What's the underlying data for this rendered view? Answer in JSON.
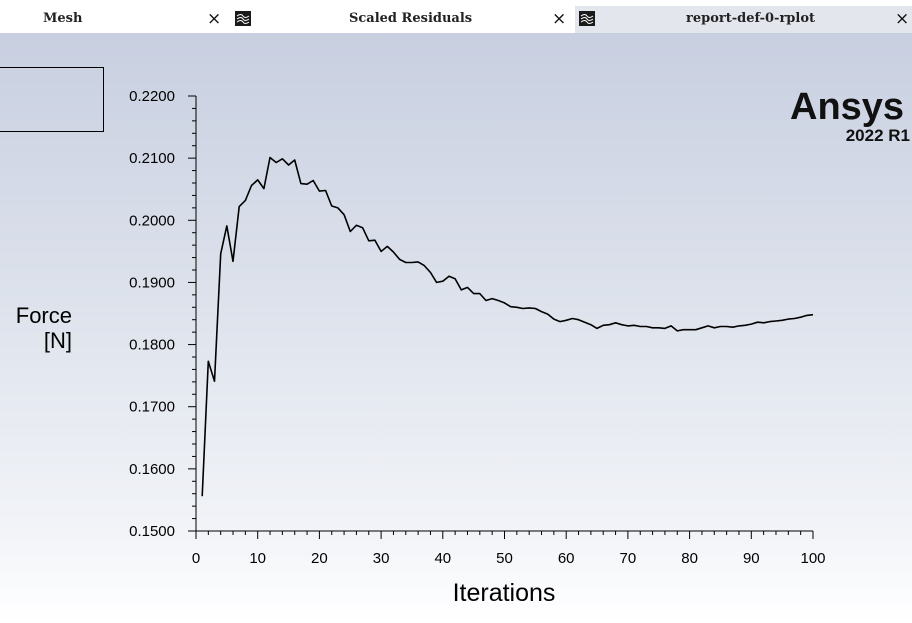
{
  "tabs": [
    {
      "label": "Mesh",
      "close": "×",
      "active": false,
      "icon": null
    },
    {
      "label": "Scaled Residuals",
      "close": "×",
      "active": false,
      "icon": "residuals-plot-icon"
    },
    {
      "label": "report-def-0-rplot",
      "close": "×",
      "active": true,
      "icon": "report-plot-icon"
    }
  ],
  "logo": {
    "name": "Ansys",
    "version": "2022 R1"
  },
  "colors": {
    "line": "#000000",
    "background_top": "#c8cfe0",
    "background_bottom": "#ffffff",
    "active_tab": "#e4e6ee"
  },
  "chart_data": {
    "type": "line",
    "xlabel": "Iterations",
    "ylabel_lines": [
      "Force",
      "[N]"
    ],
    "xlim": [
      0,
      100
    ],
    "ylim": [
      0.15,
      0.22
    ],
    "x_ticks": [
      0,
      10,
      20,
      30,
      40,
      50,
      60,
      70,
      80,
      90,
      100
    ],
    "x_tick_labels": [
      "0",
      "10",
      "20",
      "30",
      "40",
      "50",
      "60",
      "70",
      "80",
      "90",
      "100"
    ],
    "y_ticks": [
      0.15,
      0.16,
      0.17,
      0.18,
      0.19,
      0.2,
      0.21,
      0.22
    ],
    "y_tick_labels": [
      "0.1500",
      "0.1600",
      "0.1700",
      "0.1800",
      "0.1900",
      "0.2000",
      "0.2100",
      "0.2200"
    ],
    "grid": false,
    "series": [
      {
        "x": [
          1,
          2,
          3,
          4,
          5,
          6,
          7,
          8,
          9,
          10,
          11,
          12,
          13,
          14,
          15,
          16,
          17,
          18,
          19,
          20,
          21,
          22,
          23,
          24,
          25,
          26,
          27,
          28,
          29,
          30,
          31,
          32,
          33,
          34,
          35,
          36,
          37,
          38,
          39,
          40,
          41,
          42,
          43,
          44,
          45,
          46,
          47,
          48,
          49,
          50,
          51,
          52,
          53,
          54,
          55,
          56,
          57,
          58,
          59,
          60,
          61,
          62,
          63,
          64,
          65,
          66,
          67,
          68,
          69,
          70,
          71,
          72,
          73,
          74,
          75,
          76,
          77,
          78,
          79,
          80,
          81,
          82,
          83,
          84,
          85,
          86,
          87,
          88,
          89,
          90,
          91,
          92,
          93,
          94,
          95,
          96,
          97,
          98,
          99,
          100
        ],
        "y": [
          0.1556,
          0.1773,
          0.1741,
          0.1946,
          0.1991,
          0.1934,
          0.2022,
          0.2032,
          0.2056,
          0.2065,
          0.2051,
          0.2101,
          0.2093,
          0.2099,
          0.2089,
          0.2097,
          0.2059,
          0.2058,
          0.2064,
          0.2047,
          0.2048,
          0.2023,
          0.202,
          0.2009,
          0.1982,
          0.1992,
          0.1988,
          0.1967,
          0.1968,
          0.195,
          0.1958,
          0.1949,
          0.1937,
          0.1932,
          0.1932,
          0.1933,
          0.1927,
          0.1916,
          0.19,
          0.1902,
          0.191,
          0.1906,
          0.1888,
          0.1892,
          0.1882,
          0.1882,
          0.1871,
          0.1874,
          0.1871,
          0.1867,
          0.1861,
          0.186,
          0.1858,
          0.1859,
          0.1858,
          0.1853,
          0.1849,
          0.1841,
          0.1837,
          0.1839,
          0.1842,
          0.184,
          0.1836,
          0.1832,
          0.1826,
          0.1831,
          0.1832,
          0.1835,
          0.1832,
          0.183,
          0.1831,
          0.1829,
          0.1829,
          0.1827,
          0.1827,
          0.1826,
          0.183,
          0.1822,
          0.1824,
          0.1824,
          0.1824,
          0.1827,
          0.183,
          0.1827,
          0.1829,
          0.1829,
          0.1828,
          0.183,
          0.1831,
          0.1833,
          0.1836,
          0.1835,
          0.1837,
          0.1838,
          0.1839,
          0.1841,
          0.1842,
          0.1844,
          0.1847,
          0.1848
        ]
      }
    ]
  }
}
